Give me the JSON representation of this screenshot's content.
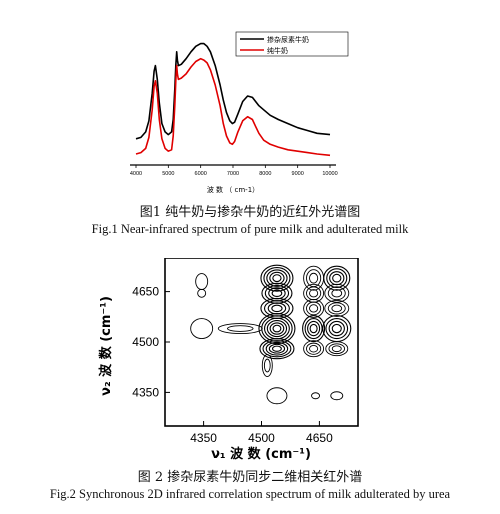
{
  "figure1": {
    "caption_cn": "图1  纯牛奶与掺杂牛奶的近红外光谱图",
    "caption_en": "Fig.1 Near-infrared spectrum of pure milk and adulterated milk",
    "chart_data": {
      "type": "line",
      "xlabel": "波 数 （ cm-1）",
      "ylabel": "",
      "xlim": [
        4000,
        10000
      ],
      "ylim": [
        0,
        1.0
      ],
      "xticks": [
        "4000",
        "5000",
        "6000",
        "7000",
        "8000",
        "9000",
        "10000"
      ],
      "legend_position": "top-right",
      "series": [
        {
          "name": "掺杂尿素牛奶",
          "color": "#000000",
          "x": [
            4000,
            4150,
            4300,
            4400,
            4500,
            4560,
            4600,
            4660,
            4720,
            4800,
            4900,
            5000,
            5100,
            5150,
            5200,
            5230,
            5260,
            5280,
            5310,
            5400,
            5550,
            5700,
            5850,
            6000,
            6100,
            6200,
            6300,
            6450,
            6600,
            6700,
            6800,
            6900,
            6980,
            7050,
            7150,
            7300,
            7450,
            7600,
            7700,
            7800,
            7950,
            8150,
            8400,
            8700,
            9000,
            9300,
            9600,
            10000
          ],
          "y": [
            0.19,
            0.2,
            0.24,
            0.32,
            0.52,
            0.68,
            0.72,
            0.62,
            0.45,
            0.3,
            0.24,
            0.22,
            0.24,
            0.33,
            0.55,
            0.72,
            0.82,
            0.76,
            0.72,
            0.73,
            0.77,
            0.82,
            0.86,
            0.88,
            0.88,
            0.86,
            0.82,
            0.72,
            0.58,
            0.47,
            0.38,
            0.32,
            0.3,
            0.31,
            0.37,
            0.46,
            0.5,
            0.49,
            0.46,
            0.43,
            0.4,
            0.36,
            0.33,
            0.3,
            0.27,
            0.25,
            0.23,
            0.22
          ]
        },
        {
          "name": "纯牛奶",
          "color": "#e00000",
          "x": [
            4000,
            4150,
            4300,
            4400,
            4500,
            4560,
            4600,
            4660,
            4720,
            4800,
            4900,
            5000,
            5100,
            5150,
            5200,
            5230,
            5260,
            5280,
            5310,
            5400,
            5550,
            5700,
            5850,
            6000,
            6100,
            6200,
            6300,
            6450,
            6600,
            6700,
            6800,
            6900,
            6980,
            7050,
            7150,
            7300,
            7450,
            7600,
            7700,
            7800,
            7950,
            8150,
            8400,
            8700,
            9000,
            9300,
            9600,
            10000
          ],
          "y": [
            0.08,
            0.09,
            0.12,
            0.2,
            0.4,
            0.57,
            0.61,
            0.52,
            0.33,
            0.19,
            0.12,
            0.1,
            0.11,
            0.21,
            0.43,
            0.61,
            0.72,
            0.66,
            0.62,
            0.63,
            0.66,
            0.71,
            0.75,
            0.77,
            0.76,
            0.74,
            0.69,
            0.58,
            0.43,
            0.3,
            0.21,
            0.16,
            0.15,
            0.17,
            0.24,
            0.32,
            0.35,
            0.33,
            0.28,
            0.23,
            0.18,
            0.15,
            0.13,
            0.11,
            0.1,
            0.09,
            0.08,
            0.07
          ]
        }
      ]
    }
  },
  "figure2": {
    "caption_cn": "图 2  掺杂尿素牛奶同步二维相关红外谱",
    "caption_en": "Fig.2 Synchronous 2D infrared correlation spectrum of milk adulterated by urea",
    "chart_data": {
      "type": "heatmap",
      "xlabel": "ν₁ 波 数 (cm⁻¹)",
      "ylabel": "ν₂ 波 数 (cm⁻¹)",
      "xlim": [
        4250,
        4750
      ],
      "ylim": [
        4250,
        4750
      ],
      "xticks": [
        4350,
        4500,
        4650
      ],
      "yticks": [
        4350,
        4500,
        4650
      ],
      "contours": [
        {
          "x": 4345,
          "y": 4680,
          "rx": 6,
          "ry": 8,
          "rings": 1
        },
        {
          "x": 4345,
          "y": 4645,
          "rx": 4,
          "ry": 4,
          "rings": 1
        },
        {
          "x": 4345,
          "y": 4540,
          "rx": 11,
          "ry": 10,
          "rings": 1
        },
        {
          "x": 4445,
          "y": 4540,
          "rx": 22,
          "ry": 5,
          "rings": 2
        },
        {
          "x": 4540,
          "y": 4690,
          "rx": 16,
          "ry": 13,
          "rings": 5
        },
        {
          "x": 4540,
          "y": 4645,
          "rx": 15,
          "ry": 10,
          "rings": 4
        },
        {
          "x": 4540,
          "y": 4600,
          "rx": 16,
          "ry": 10,
          "rings": 4
        },
        {
          "x": 4540,
          "y": 4540,
          "rx": 18,
          "ry": 15,
          "rings": 6
        },
        {
          "x": 4540,
          "y": 4480,
          "rx": 17,
          "ry": 10,
          "rings": 5
        },
        {
          "x": 4540,
          "y": 4340,
          "rx": 10,
          "ry": 8,
          "rings": 1
        },
        {
          "x": 4515,
          "y": 4430,
          "rx": 5,
          "ry": 11,
          "rings": 2
        },
        {
          "x": 4635,
          "y": 4690,
          "rx": 10,
          "ry": 12,
          "rings": 3
        },
        {
          "x": 4635,
          "y": 4645,
          "rx": 10,
          "ry": 9,
          "rings": 3
        },
        {
          "x": 4635,
          "y": 4600,
          "rx": 10,
          "ry": 9,
          "rings": 3
        },
        {
          "x": 4635,
          "y": 4540,
          "rx": 11,
          "ry": 13,
          "rings": 4
        },
        {
          "x": 4635,
          "y": 4480,
          "rx": 10,
          "ry": 8,
          "rings": 3
        },
        {
          "x": 4695,
          "y": 4690,
          "rx": 13,
          "ry": 12,
          "rings": 4
        },
        {
          "x": 4695,
          "y": 4645,
          "rx": 12,
          "ry": 9,
          "rings": 3
        },
        {
          "x": 4695,
          "y": 4600,
          "rx": 12,
          "ry": 8,
          "rings": 3
        },
        {
          "x": 4695,
          "y": 4540,
          "rx": 14,
          "ry": 13,
          "rings": 4
        },
        {
          "x": 4695,
          "y": 4480,
          "rx": 11,
          "ry": 7,
          "rings": 3
        },
        {
          "x": 4640,
          "y": 4340,
          "rx": 4,
          "ry": 3,
          "rings": 1
        },
        {
          "x": 4695,
          "y": 4340,
          "rx": 6,
          "ry": 4,
          "rings": 1
        }
      ]
    }
  }
}
